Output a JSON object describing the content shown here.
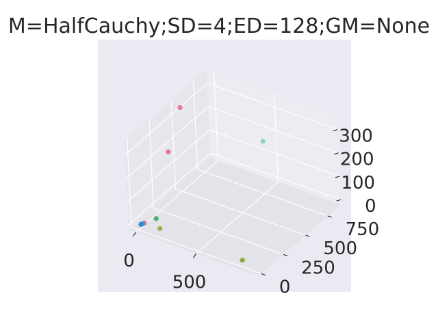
{
  "chart_data": {
    "type": "scatter",
    "subtype": "3d",
    "title": "M=HalfCauchy;SD=4;ED=128;GM=None",
    "xlabel": "",
    "ylabel": "",
    "zlabel": "",
    "grid": true,
    "x_ticks": [
      "0",
      "500"
    ],
    "y_ticks": [
      "0",
      "250",
      "500",
      "750"
    ],
    "z_ticks": [
      "0",
      "100",
      "200",
      "300"
    ],
    "xlim": [
      -60,
      1020
    ],
    "ylim": [
      -30,
      900
    ],
    "zlim": [
      -20,
      360
    ],
    "points": [
      {
        "x": 10,
        "y": 500,
        "z": 340,
        "color": "#e8688a"
      },
      {
        "x": 10,
        "y": 350,
        "z": 200,
        "color": "#e8688a"
      },
      {
        "x": 480,
        "y": 780,
        "z": 190,
        "color": "#88cfba"
      },
      {
        "x": 60,
        "y": 120,
        "z": 0,
        "color": "#3aa86a"
      },
      {
        "x": 150,
        "y": 40,
        "z": 0,
        "color": "#94aa3a"
      },
      {
        "x": 850,
        "y": 20,
        "z": 0,
        "color": "#86a02e"
      },
      {
        "x": 20,
        "y": 40,
        "z": 0,
        "color": "#e8688a"
      },
      {
        "x": 20,
        "y": 35,
        "z": 0,
        "color": "#e07e5c"
      },
      {
        "x": 15,
        "y": 30,
        "z": 0,
        "color": "#b08ac8"
      },
      {
        "x": 15,
        "y": 25,
        "z": 0,
        "color": "#3a9ab8"
      },
      {
        "x": 10,
        "y": 20,
        "z": 0,
        "color": "#1e9cd8"
      },
      {
        "x": 10,
        "y": 15,
        "z": 0,
        "color": "#2a8ec0"
      }
    ]
  }
}
